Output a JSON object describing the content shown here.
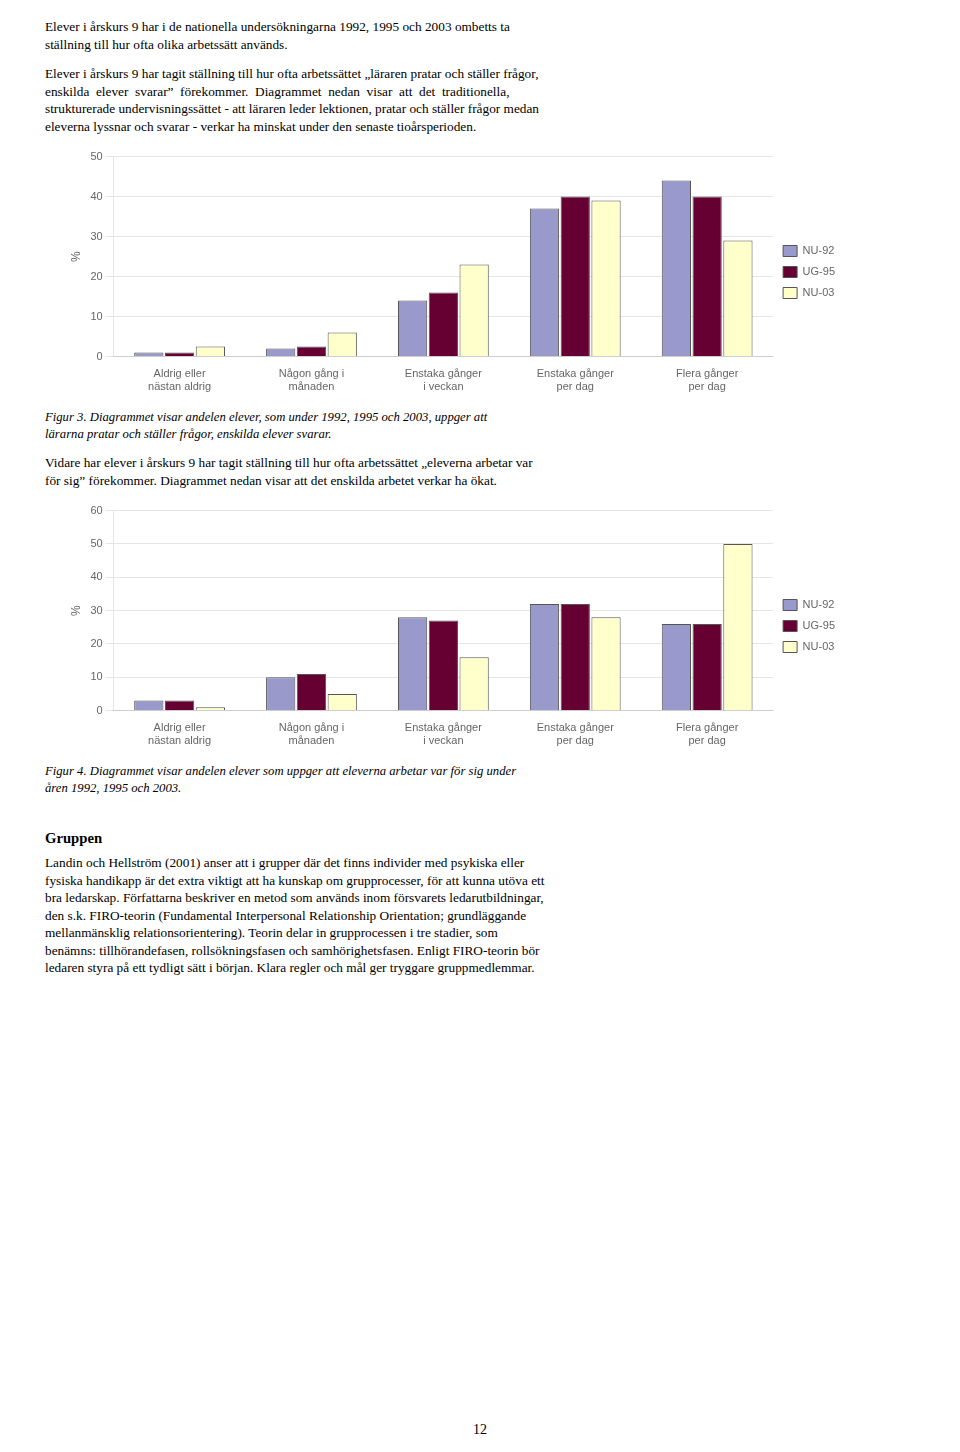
{
  "p1_lines": [
    "Elever i årskurs 9 har i de nationella undersökningarna 1992, 1995 och 2003 ombetts ta",
    "ställning till hur ofta olika arbetssätt används."
  ],
  "p2_lines": [
    "Elever i årskurs 9 har tagit ställning till hur ofta arbetssättet „läraren pratar och ställer frågor,",
    "enskilda  elever  svarar”  förekommer.  Diagrammet  nedan  visar  att  det  traditionella,",
    "strukturerade undervisningssättet - att läraren leder lektionen, pratar och ställer frågor medan",
    "eleverna lyssnar och svarar - verkar ha minskat under den senaste tioårsperioden."
  ],
  "figur3_lines": [
    "Figur 3. Diagrammet visar andelen elever, som under 1992, 1995 och 2003, uppger att",
    "lärarna pratar och ställer frågor, enskilda elever svarar."
  ],
  "middle_lines": [
    "Vidare har elever i årskurs 9 har tagit ställning till hur ofta arbetssättet „eleverna arbetar var",
    "för sig” förekommer. Diagrammet nedan visar att det enskilda arbetet verkar ha ökat."
  ],
  "figur4_lines": [
    "Figur 4. Diagrammet visar andelen elever som uppger att eleverna arbetar var för sig under",
    "åren 1992, 1995 och 2003."
  ],
  "gruppen_heading": "Gruppen",
  "gruppen_lines": [
    "Landin och Hellström (2001) anser att i grupper där det finns individer med psykiska eller",
    "fysiska handikapp är det extra viktigt att ha kunskap om grupprocesser, för att kunna utöva ett",
    "bra ledarskap. Författarna beskriver en metod som används inom försvarets ledarutbildningar,",
    "den s.k. FIRO-teorin (Fundamental Interpersonal Relationship Orientation; grundläggande",
    "mellanmänsklig relationsorientering). Teorin delar in grupprocessen i tre stadier, som",
    "benämns: tillhörandefasen, rollsökningsfasen och samhörighetsfasen. Enligt FIRO-teorin bör",
    "ledaren styra på ett tydligt sätt i början. Klara regler och mål ger tryggare gruppmedlemmar."
  ],
  "page_number": "12",
  "chart_data": [
    {
      "type": "bar",
      "categories": [
        "Aldrig eller\nnästan aldrig",
        "Någon gång i\nmånaden",
        "Enstaka gånger\ni veckan",
        "Enstaka gånger\nper dag",
        "Flera gånger\nper dag"
      ],
      "series": [
        {
          "name": "NU-92",
          "color": "#9999cc",
          "values": [
            1,
            2,
            14,
            37,
            44
          ]
        },
        {
          "name": "UG-95",
          "color": "#660033",
          "values": [
            1,
            2.5,
            16,
            40,
            40
          ]
        },
        {
          "name": "NU-03",
          "color": "#ffffcc",
          "values": [
            2.5,
            6,
            23,
            39,
            29
          ]
        }
      ],
      "ylabel": "%",
      "ylim": [
        0,
        50
      ],
      "yticks": [
        0,
        10,
        20,
        30,
        40,
        50
      ],
      "grid": true,
      "legend": "right"
    },
    {
      "type": "bar",
      "categories": [
        "Aldrig eller\nnästan aldrig",
        "Någon gång i\nmånaden",
        "Enstaka gånger\ni veckan",
        "Enstaka gånger\nper dag",
        "Flera gånger\nper dag"
      ],
      "series": [
        {
          "name": "NU-92",
          "color": "#9999cc",
          "values": [
            3,
            10,
            28,
            32,
            26
          ]
        },
        {
          "name": "UG-95",
          "color": "#660033",
          "values": [
            3,
            11,
            27,
            32,
            26
          ]
        },
        {
          "name": "NU-03",
          "color": "#ffffcc",
          "values": [
            1,
            5,
            16,
            28,
            50
          ]
        }
      ],
      "ylabel": "%",
      "ylim": [
        0,
        60
      ],
      "yticks": [
        0,
        10,
        20,
        30,
        40,
        50,
        60
      ],
      "grid": true,
      "legend": "right"
    }
  ]
}
